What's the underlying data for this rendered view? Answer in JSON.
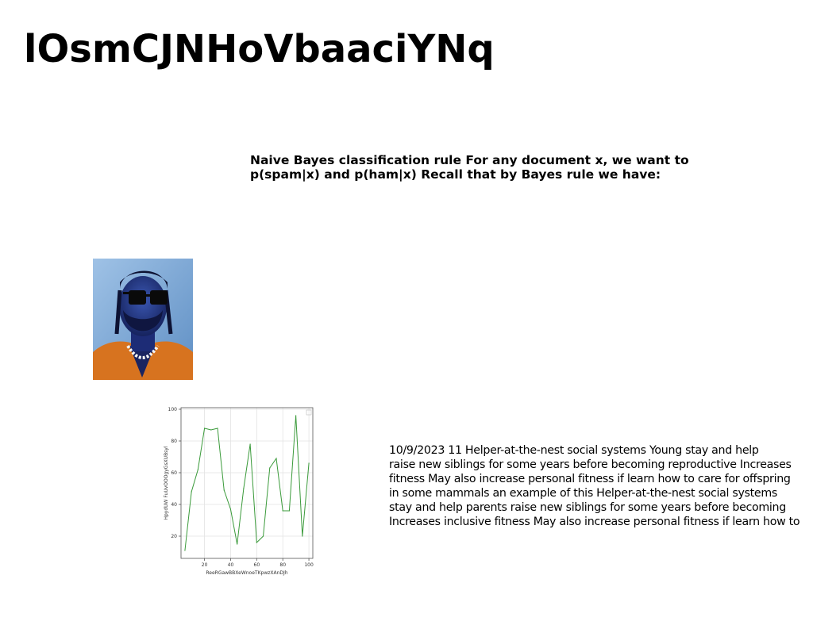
{
  "page": {
    "title": "lOsmCJNHoVbaaciYNq"
  },
  "heading": {
    "line1": "Naive Bayes classification rule For any document x, we want to",
    "line2": "p(spam|x) and p(ham|x) Recall that by Bayes rule we have:"
  },
  "body": {
    "lines": [
      "10/9/2023 11 Helper-at-the-nest social systems Young stay and help",
      "raise new siblings for some years before becoming reproductive Increases",
      "fitness May also increase personal fitness if learn how to care for offspring",
      "in some mammals an example of this Helper-at-the-nest social systems",
      "stay and help parents raise new siblings for some years before becoming",
      "Increases inclusive fitness May also increase personal fitness if learn how to"
    ]
  },
  "photo": {
    "icon": "portrait-photo-icon"
  },
  "chart_data": {
    "type": "line",
    "xlabel": "ReeRGawBBXeWnoeTKpwzXAnDJh",
    "ylabel": "HpydUW FuUvOOOgyGsXUBsyl",
    "xlim": [
      2,
      103
    ],
    "ylim": [
      6,
      101
    ],
    "xticks": [
      20,
      40,
      60,
      80,
      100
    ],
    "yticks": [
      20,
      40,
      60,
      80,
      100
    ],
    "grid": true,
    "legend": "top-right",
    "color": "#3a9a3a",
    "x": [
      5,
      10,
      15,
      20,
      25,
      30,
      35,
      40,
      45,
      50,
      55,
      60,
      65,
      70,
      75,
      80,
      85,
      90,
      95,
      100
    ],
    "y": [
      11,
      48,
      62,
      88,
      87,
      88,
      49,
      37,
      15,
      50,
      78,
      16,
      20,
      63,
      69,
      36,
      36,
      96,
      20,
      66
    ]
  }
}
